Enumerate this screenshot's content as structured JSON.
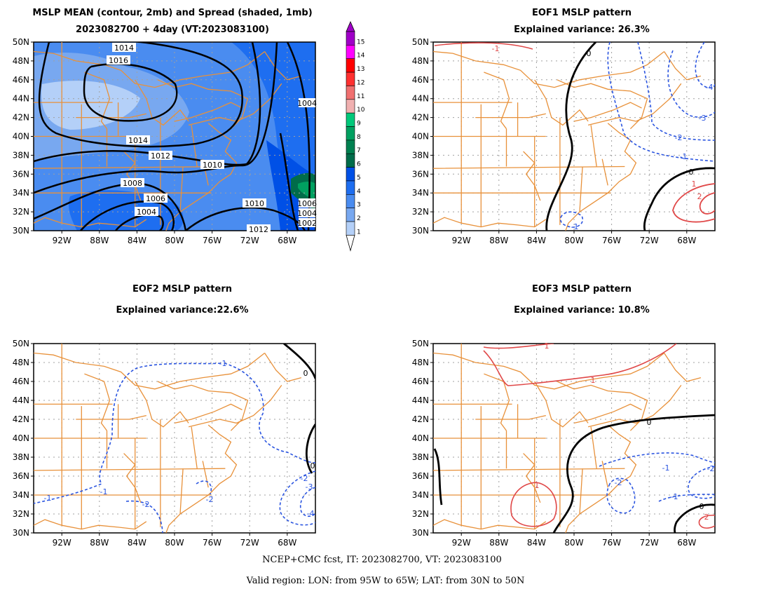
{
  "panels": [
    {
      "id": "mean-spread",
      "title_lines": [
        "MSLP MEAN (contour, 2mb) and Spread (shaded, 1mb)",
        "2023082700 + 4day (VT:2023083100)"
      ],
      "shaded": true,
      "contour_labels": [
        "1014",
        "1016",
        "1014",
        "1012",
        "1010",
        "1008",
        "1006",
        "1004",
        "1010",
        "1012",
        "1006",
        "1004",
        "1002",
        "1004"
      ],
      "contours": [
        {
          "label": "1016",
          "color": "#000000",
          "width": 2.5,
          "dashed": false
        },
        {
          "label": "1014",
          "color": "#000000",
          "width": 2.5,
          "dashed": false
        },
        {
          "label": "1012",
          "color": "#000000",
          "width": 2.5,
          "dashed": false
        },
        {
          "label": "1010",
          "color": "#000000",
          "width": 2.5,
          "dashed": false
        },
        {
          "label": "1008",
          "color": "#000000",
          "width": 2.5,
          "dashed": false
        },
        {
          "label": "1006",
          "color": "#000000",
          "width": 2.5,
          "dashed": false
        },
        {
          "label": "1004",
          "color": "#000000",
          "width": 2.5,
          "dashed": false
        }
      ]
    },
    {
      "id": "eof1",
      "title_lines": [
        "EOF1 MSLP pattern",
        "Explained variance: 26.3%"
      ],
      "shaded": false,
      "contour_labels": [
        "-1",
        "0",
        "-4",
        "-3",
        "-2",
        "-1",
        "0",
        "1",
        "2",
        "-1"
      ],
      "contours": []
    },
    {
      "id": "eof2",
      "title_lines": [
        "EOF2 MSLP pattern",
        "Explained variance:22.6%"
      ],
      "shaded": false,
      "contour_labels": [
        "-1",
        "0",
        "0",
        "-2",
        "-3",
        "-4",
        "-1",
        "-1",
        "-2",
        "-2"
      ],
      "contours": []
    },
    {
      "id": "eof3",
      "title_lines": [
        "EOF3 MSLP pattern",
        "Explained variance: 10.8%"
      ],
      "shaded": false,
      "contour_labels": [
        "1",
        "1",
        "0",
        "-1",
        "-2",
        "-2",
        "-1",
        "0",
        "-2",
        "1"
      ],
      "contours": []
    }
  ],
  "axes": {
    "lat_labels": [
      "50N",
      "48N",
      "46N",
      "44N",
      "42N",
      "40N",
      "38N",
      "36N",
      "34N",
      "32N",
      "30N"
    ],
    "lon_labels": [
      "92W",
      "88W",
      "84W",
      "80W",
      "76W",
      "72W",
      "68W"
    ],
    "lon_range": [
      -95,
      -65
    ],
    "lat_range": [
      30,
      50
    ]
  },
  "colorbar": {
    "labels": [
      "15",
      "14",
      "13",
      "12",
      "11",
      "10",
      "9",
      "8",
      "7",
      "6",
      "5",
      "4",
      "3",
      "2",
      "1"
    ],
    "colors": [
      "#a000c8",
      "#ff00ff",
      "#ff0000",
      "#ff3030",
      "#f07070",
      "#f0b0b0",
      "#00c87a",
      "#00a060",
      "#008050",
      "#006c4a",
      "#0050e6",
      "#1e6ef0",
      "#4a8cf0",
      "#78a8f0",
      "#b4d0f8"
    ]
  },
  "footer": {
    "line1": "NCEP+CMC fcst, IT: 2023082700, VT: 2023083100",
    "line2": "Valid region: LON: from 95W to 65W; LAT: from 30N to 50N"
  },
  "colors": {
    "map": "#e8913a",
    "positive": "#e04848",
    "negative": "#2b55e0",
    "zero": "#000000"
  }
}
